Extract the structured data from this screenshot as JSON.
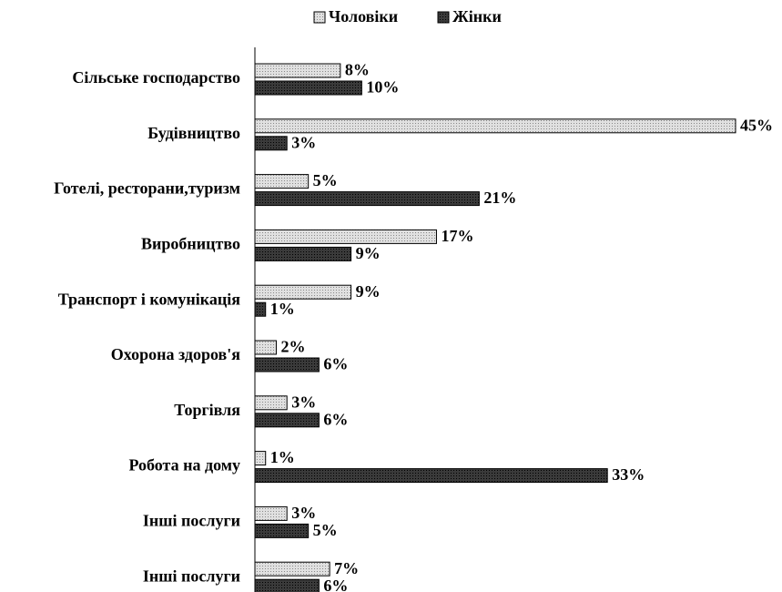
{
  "chart_data": {
    "type": "bar",
    "orientation": "horizontal",
    "categories": [
      "Сільське господарство",
      "Будівництво",
      "Готелі, ресторани,туризм",
      "Виробництво",
      "Транспорт і комунікація",
      "Охорона здоров'я",
      "Торгівля",
      "Робота на дому",
      "Інші послуги",
      "Інші послуги"
    ],
    "series": [
      {
        "name": "Чоловіки",
        "color": "#e0e0e0",
        "values": [
          8,
          45,
          5,
          17,
          9,
          2,
          3,
          1,
          3,
          7
        ],
        "value_labels": [
          "8%",
          "45%",
          "5%",
          "17%",
          "9%",
          "2%",
          "3%",
          "1%",
          "3%",
          "7%"
        ]
      },
      {
        "name": "Жінки",
        "color": "#3a3a3a",
        "values": [
          10,
          3,
          21,
          9,
          1,
          6,
          6,
          33,
          5,
          6
        ],
        "value_labels": [
          "10%",
          "3%",
          "21%",
          "9%",
          "1%",
          "6%",
          "6%",
          "33%",
          "5%",
          "6%"
        ]
      }
    ],
    "legend": "top"
  }
}
